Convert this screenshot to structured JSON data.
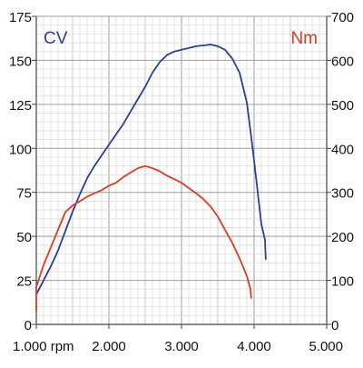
{
  "chart_data": {
    "type": "line",
    "grid": true,
    "xlabel": "",
    "xlim": [
      1000,
      5000
    ],
    "x_ticks": [
      {
        "value": 1000,
        "label": "1.000 rpm"
      },
      {
        "value": 2000,
        "label": "2.000"
      },
      {
        "value": 3000,
        "label": "3.000"
      },
      {
        "value": 4000,
        "label": "4.000"
      },
      {
        "value": 5000,
        "label": "5.000"
      }
    ],
    "axes": {
      "left": {
        "label": "CV",
        "color": "#2b3f93",
        "ylim": [
          0,
          175
        ],
        "ticks": [
          0,
          25,
          50,
          75,
          100,
          125,
          150,
          175
        ]
      },
      "right": {
        "label": "Nm",
        "color": "#e03a1e",
        "ylim": [
          0,
          700
        ],
        "ticks": [
          0,
          100,
          200,
          300,
          400,
          500,
          600,
          700
        ]
      }
    },
    "series": [
      {
        "name": "CV",
        "axis": "left",
        "color": "#2b3f93",
        "points": [
          [
            1000,
            17
          ],
          [
            1100,
            25
          ],
          [
            1200,
            33
          ],
          [
            1300,
            42
          ],
          [
            1400,
            53
          ],
          [
            1500,
            64
          ],
          [
            1600,
            74
          ],
          [
            1700,
            83
          ],
          [
            1800,
            90
          ],
          [
            1900,
            96
          ],
          [
            2000,
            102
          ],
          [
            2100,
            108
          ],
          [
            2200,
            114
          ],
          [
            2300,
            121
          ],
          [
            2400,
            128
          ],
          [
            2500,
            135
          ],
          [
            2600,
            143
          ],
          [
            2700,
            149
          ],
          [
            2800,
            153
          ],
          [
            2900,
            155
          ],
          [
            3000,
            156
          ],
          [
            3100,
            157
          ],
          [
            3200,
            158
          ],
          [
            3300,
            158.5
          ],
          [
            3400,
            159
          ],
          [
            3500,
            158
          ],
          [
            3600,
            156
          ],
          [
            3700,
            151
          ],
          [
            3800,
            143
          ],
          [
            3900,
            126
          ],
          [
            3950,
            110
          ],
          [
            4000,
            93
          ],
          [
            4050,
            75
          ],
          [
            4100,
            57
          ],
          [
            4150,
            48
          ],
          [
            4160,
            37
          ]
        ]
      },
      {
        "name": "Nm",
        "axis": "right",
        "color": "#e03a1e",
        "points": [
          [
            1000,
            30
          ],
          [
            1000,
            85
          ],
          [
            1100,
            135
          ],
          [
            1200,
            175
          ],
          [
            1300,
            215
          ],
          [
            1400,
            255
          ],
          [
            1500,
            270
          ],
          [
            1600,
            280
          ],
          [
            1700,
            290
          ],
          [
            1800,
            298
          ],
          [
            1900,
            305
          ],
          [
            2000,
            315
          ],
          [
            2100,
            322
          ],
          [
            2200,
            335
          ],
          [
            2300,
            345
          ],
          [
            2400,
            355
          ],
          [
            2500,
            360
          ],
          [
            2600,
            355
          ],
          [
            2700,
            348
          ],
          [
            2800,
            338
          ],
          [
            2900,
            330
          ],
          [
            3000,
            322
          ],
          [
            3100,
            310
          ],
          [
            3200,
            298
          ],
          [
            3300,
            285
          ],
          [
            3400,
            268
          ],
          [
            3500,
            245
          ],
          [
            3600,
            215
          ],
          [
            3700,
            185
          ],
          [
            3800,
            150
          ],
          [
            3900,
            110
          ],
          [
            3950,
            80
          ],
          [
            3960,
            60
          ]
        ]
      }
    ]
  }
}
